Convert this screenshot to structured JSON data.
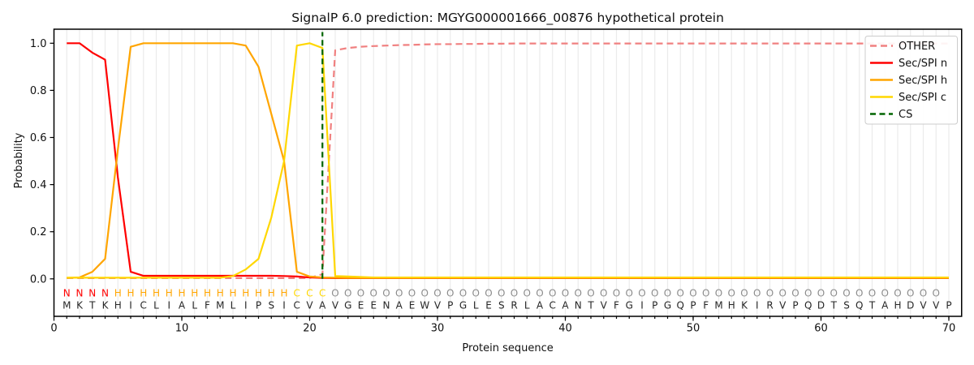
{
  "chart_data": {
    "type": "line",
    "title": "SignalP 6.0 prediction: MGYG000001666_00876 hypothetical protein",
    "xlabel": "Protein sequence",
    "ylabel": "Probability",
    "xticks": [
      0,
      10,
      20,
      30,
      40,
      50,
      60,
      70
    ],
    "yticks": [
      0.0,
      0.2,
      0.4,
      0.6,
      0.8,
      1.0
    ],
    "xlim": [
      0,
      71
    ],
    "ylim": [
      -0.16,
      1.06
    ],
    "grid": "vertical line per residue, light gray",
    "legend_position": "upper right",
    "x_start": 1,
    "sequence": "MKTKHICLIALFMLIPSICVAVGEENAEWVPGLESRLACANTVFGIPGQPFMHKIRVPQDTSQTAHDVVP",
    "annotation": "NNNNHHHHHHHHHHHHHHCCCOOOOOOOOOOOOOOOOOOOOOOOOOOOOOOOOOOOOOOOOOOOOOOOO",
    "annotation_colors": {
      "N": "#ff0000",
      "H": "#ffa500",
      "C": "#ffd700",
      "O": "#8c8c8c"
    },
    "sequence_color": "#262626",
    "cs_position": 21,
    "series": [
      {
        "name": "OTHER",
        "color": "#f08080",
        "style": "dashed",
        "values": [
          0.003,
          0.003,
          0.003,
          0.003,
          0.003,
          0.003,
          0.003,
          0.003,
          0.003,
          0.003,
          0.003,
          0.003,
          0.003,
          0.003,
          0.003,
          0.003,
          0.003,
          0.003,
          0.003,
          0.004,
          0.02,
          0.97,
          0.98,
          0.985,
          0.988,
          0.99,
          0.992,
          0.993,
          0.995,
          0.996,
          0.996,
          0.997,
          0.997,
          0.998,
          0.998,
          0.999,
          0.999,
          0.999,
          0.999,
          0.999,
          0.999,
          0.999,
          0.999,
          0.999,
          0.999,
          0.999,
          0.999,
          0.999,
          0.999,
          0.999,
          0.999,
          0.999,
          0.999,
          0.999,
          0.999,
          0.999,
          0.999,
          0.999,
          0.999,
          0.999,
          0.999,
          0.999,
          0.999,
          0.999,
          0.999,
          0.999,
          0.999,
          0.999,
          0.999,
          0.999
        ]
      },
      {
        "name": "Sec/SPI n",
        "color": "#ff0000",
        "style": "solid",
        "values": [
          1.0,
          1.0,
          0.96,
          0.93,
          0.43,
          0.03,
          0.013,
          0.013,
          0.013,
          0.013,
          0.013,
          0.013,
          0.013,
          0.013,
          0.013,
          0.013,
          0.013,
          0.012,
          0.01,
          0.006,
          0.004,
          0.003,
          0.003,
          0.003,
          0.003,
          0.003,
          0.003,
          0.003,
          0.003,
          0.003,
          0.003,
          0.003,
          0.003,
          0.003,
          0.003,
          0.003,
          0.003,
          0.003,
          0.003,
          0.003,
          0.003,
          0.003,
          0.003,
          0.003,
          0.003,
          0.003,
          0.003,
          0.003,
          0.003,
          0.003,
          0.003,
          0.003,
          0.003,
          0.003,
          0.003,
          0.003,
          0.003,
          0.003,
          0.003,
          0.003,
          0.003,
          0.003,
          0.003,
          0.003,
          0.003,
          0.003,
          0.003,
          0.003,
          0.003,
          0.003
        ]
      },
      {
        "name": "Sec/SPI h",
        "color": "#ffa500",
        "style": "solid",
        "values": [
          0.004,
          0.006,
          0.03,
          0.085,
          0.55,
          0.985,
          1.0,
          1.0,
          1.0,
          1.0,
          1.0,
          1.0,
          1.0,
          1.0,
          0.99,
          0.9,
          0.7,
          0.5,
          0.03,
          0.01,
          0.006,
          0.005,
          0.004,
          0.004,
          0.004,
          0.004,
          0.004,
          0.004,
          0.004,
          0.004,
          0.004,
          0.004,
          0.004,
          0.004,
          0.004,
          0.004,
          0.004,
          0.004,
          0.004,
          0.004,
          0.004,
          0.004,
          0.004,
          0.004,
          0.004,
          0.004,
          0.004,
          0.004,
          0.004,
          0.004,
          0.004,
          0.004,
          0.004,
          0.004,
          0.004,
          0.004,
          0.004,
          0.004,
          0.004,
          0.004,
          0.004,
          0.004,
          0.004,
          0.004,
          0.004,
          0.004,
          0.004,
          0.004,
          0.004,
          0.004
        ]
      },
      {
        "name": "Sec/SPI c",
        "color": "#ffd700",
        "style": "solid",
        "values": [
          0.005,
          0.005,
          0.005,
          0.005,
          0.005,
          0.005,
          0.005,
          0.005,
          0.005,
          0.005,
          0.005,
          0.005,
          0.005,
          0.012,
          0.04,
          0.085,
          0.26,
          0.5,
          0.99,
          1.0,
          0.98,
          0.012,
          0.01,
          0.008,
          0.006,
          0.006,
          0.006,
          0.006,
          0.006,
          0.006,
          0.006,
          0.006,
          0.006,
          0.006,
          0.006,
          0.006,
          0.006,
          0.006,
          0.006,
          0.006,
          0.006,
          0.006,
          0.006,
          0.006,
          0.006,
          0.006,
          0.006,
          0.006,
          0.006,
          0.006,
          0.006,
          0.006,
          0.006,
          0.006,
          0.006,
          0.006,
          0.006,
          0.006,
          0.006,
          0.006,
          0.006,
          0.006,
          0.006,
          0.006,
          0.006,
          0.006,
          0.006,
          0.006,
          0.006,
          0.006
        ]
      },
      {
        "name": "CS",
        "color": "#006400",
        "style": "dashed-vertical",
        "x": 21
      }
    ],
    "legend": [
      {
        "label": "OTHER",
        "color": "#f08080",
        "dash": "8 5"
      },
      {
        "label": "Sec/SPI n",
        "color": "#ff0000",
        "dash": ""
      },
      {
        "label": "Sec/SPI h",
        "color": "#ffa500",
        "dash": ""
      },
      {
        "label": "Sec/SPI c",
        "color": "#ffd700",
        "dash": ""
      },
      {
        "label": "CS",
        "color": "#006400",
        "dash": "7 4.5"
      }
    ]
  }
}
